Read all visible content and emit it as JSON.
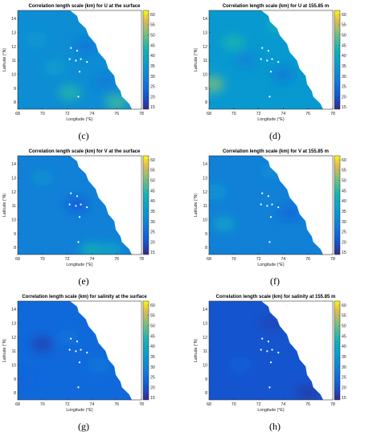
{
  "chart_data": [
    {
      "id": "c",
      "type": "heatmap",
      "caption": "(c)",
      "title": "Correlation length scale (km) for U at the surface",
      "xlabel": "Longitude (°E)",
      "ylabel": "Latitude (°N)",
      "xlim": [
        68,
        78
      ],
      "ylim": [
        7.5,
        14.6
      ],
      "xticks": [
        68,
        70,
        72,
        74,
        76,
        78
      ],
      "yticks": [
        8,
        9,
        10,
        11,
        12,
        13,
        14
      ],
      "colorbar_ticks": [
        15,
        20,
        25,
        30,
        35,
        40,
        45,
        50,
        55,
        60
      ],
      "clim": [
        14,
        62
      ],
      "base_value": 32,
      "blobs": [
        {
          "lon": 72.2,
          "lat": 8.7,
          "value": 44
        },
        {
          "lon": 76.0,
          "lat": 8.0,
          "value": 46
        },
        {
          "lon": 69.5,
          "lat": 12.5,
          "value": 35
        },
        {
          "lon": 73.5,
          "lat": 12.0,
          "value": 27
        },
        {
          "lon": 71.0,
          "lat": 10.5,
          "value": 36
        },
        {
          "lon": 75.0,
          "lat": 9.5,
          "value": 28
        }
      ],
      "land_mask": true,
      "islands": true
    },
    {
      "id": "d",
      "type": "heatmap",
      "caption": "(d)",
      "title": "Correlation length scale (km) for U at 155.85 m",
      "xlabel": "Longitude (°E)",
      "ylabel": "Latitude (°N)",
      "xlim": [
        68,
        78
      ],
      "ylim": [
        7.5,
        14.6
      ],
      "xticks": [
        68,
        70,
        72,
        74,
        76,
        78
      ],
      "yticks": [
        8,
        9,
        10,
        11,
        12,
        13,
        14
      ],
      "colorbar_ticks": [
        15,
        20,
        25,
        30,
        35,
        40,
        45,
        50,
        55,
        60
      ],
      "clim": [
        14,
        62
      ],
      "base_value": 35,
      "blobs": [
        {
          "lon": 68.3,
          "lat": 9.3,
          "value": 50
        },
        {
          "lon": 70.0,
          "lat": 12.3,
          "value": 43
        },
        {
          "lon": 71.0,
          "lat": 11.0,
          "value": 30
        },
        {
          "lon": 74.0,
          "lat": 10.0,
          "value": 28
        },
        {
          "lon": 75.5,
          "lat": 12.0,
          "value": 38
        },
        {
          "lon": 73.5,
          "lat": 13.5,
          "value": 40
        }
      ],
      "land_mask": true,
      "islands": true
    },
    {
      "id": "e",
      "type": "heatmap",
      "caption": "(e)",
      "title": "Correlation length scale (km) for V at the surface",
      "xlabel": "Longitude (°E)",
      "ylabel": "Latitude (°N)",
      "xlim": [
        68,
        78
      ],
      "ylim": [
        7.5,
        14.6
      ],
      "xticks": [
        68,
        70,
        72,
        74,
        76,
        78
      ],
      "yticks": [
        8,
        9,
        10,
        11,
        12,
        13,
        14
      ],
      "colorbar_ticks": [
        15,
        20,
        25,
        30,
        35,
        40,
        45,
        50,
        55,
        60
      ],
      "clim": [
        14,
        62
      ],
      "base_value": 29,
      "blobs": [
        {
          "lon": 72.8,
          "lat": 11.1,
          "value": 22
        },
        {
          "lon": 74.0,
          "lat": 7.8,
          "value": 42
        },
        {
          "lon": 75.5,
          "lat": 7.8,
          "value": 38
        },
        {
          "lon": 70.0,
          "lat": 13.0,
          "value": 33
        }
      ],
      "land_mask": true,
      "islands": true
    },
    {
      "id": "f",
      "type": "heatmap",
      "caption": "(f)",
      "title": "Correlation length scale (km) for V at 155.85 m",
      "xlabel": "Longitude (°E)",
      "ylabel": "Latitude (°N)",
      "xlim": [
        68,
        78
      ],
      "ylim": [
        7.5,
        14.6
      ],
      "xticks": [
        68,
        70,
        72,
        74,
        76,
        78
      ],
      "yticks": [
        8,
        9,
        10,
        11,
        12,
        13,
        14
      ],
      "colorbar_ticks": [
        15,
        20,
        25,
        30,
        35,
        40,
        45,
        50,
        55,
        60
      ],
      "clim": [
        14,
        62
      ],
      "base_value": 29,
      "blobs": [
        {
          "lon": 69.2,
          "lat": 9.7,
          "value": 38
        },
        {
          "lon": 68.5,
          "lat": 12.0,
          "value": 34
        },
        {
          "lon": 74.5,
          "lat": 10.5,
          "value": 24
        },
        {
          "lon": 73.0,
          "lat": 13.5,
          "value": 32
        }
      ],
      "land_mask": true,
      "islands": true
    },
    {
      "id": "g",
      "type": "heatmap",
      "caption": "(g)",
      "title": "Correlation length scale (km) for salinity at the surface",
      "xlabel": "Longitude (°E)",
      "ylabel": "Latitude (°N)",
      "xlim": [
        68,
        78
      ],
      "ylim": [
        7.5,
        14.6
      ],
      "xticks": [
        68,
        70,
        72,
        74,
        76,
        78
      ],
      "yticks": [
        8,
        9,
        10,
        11,
        12,
        13,
        14
      ],
      "colorbar_ticks": [
        15,
        20,
        25,
        30,
        35,
        40,
        45,
        50,
        55,
        60
      ],
      "clim": [
        14,
        62
      ],
      "base_value": 24,
      "blobs": [
        {
          "lon": 70.0,
          "lat": 11.5,
          "value": 18
        },
        {
          "lon": 72.0,
          "lat": 12.0,
          "value": 26
        },
        {
          "lon": 74.5,
          "lat": 10.0,
          "value": 27
        },
        {
          "lon": 68.5,
          "lat": 9.0,
          "value": 23
        }
      ],
      "land_mask": true,
      "islands": true
    },
    {
      "id": "h",
      "type": "heatmap",
      "caption": "(h)",
      "title": "Correlation length scale (km) for salinity at 155.85 m",
      "xlabel": "Longitude (°E)",
      "ylabel": "Latitude (°N)",
      "xlim": [
        68,
        78
      ],
      "ylim": [
        7.5,
        14.6
      ],
      "xticks": [
        68,
        70,
        72,
        74,
        76,
        78
      ],
      "yticks": [
        8,
        9,
        10,
        11,
        12,
        13,
        14
      ],
      "colorbar_ticks": [
        15,
        20,
        25,
        30,
        35,
        40,
        45,
        50,
        55,
        60
      ],
      "clim": [
        14,
        62
      ],
      "base_value": 20,
      "blobs": [
        {
          "lon": 70.5,
          "lat": 10.0,
          "value": 22
        },
        {
          "lon": 73.0,
          "lat": 13.0,
          "value": 18
        },
        {
          "lon": 76.0,
          "lat": 8.0,
          "value": 17
        }
      ],
      "land_mask": true,
      "islands": true
    }
  ]
}
